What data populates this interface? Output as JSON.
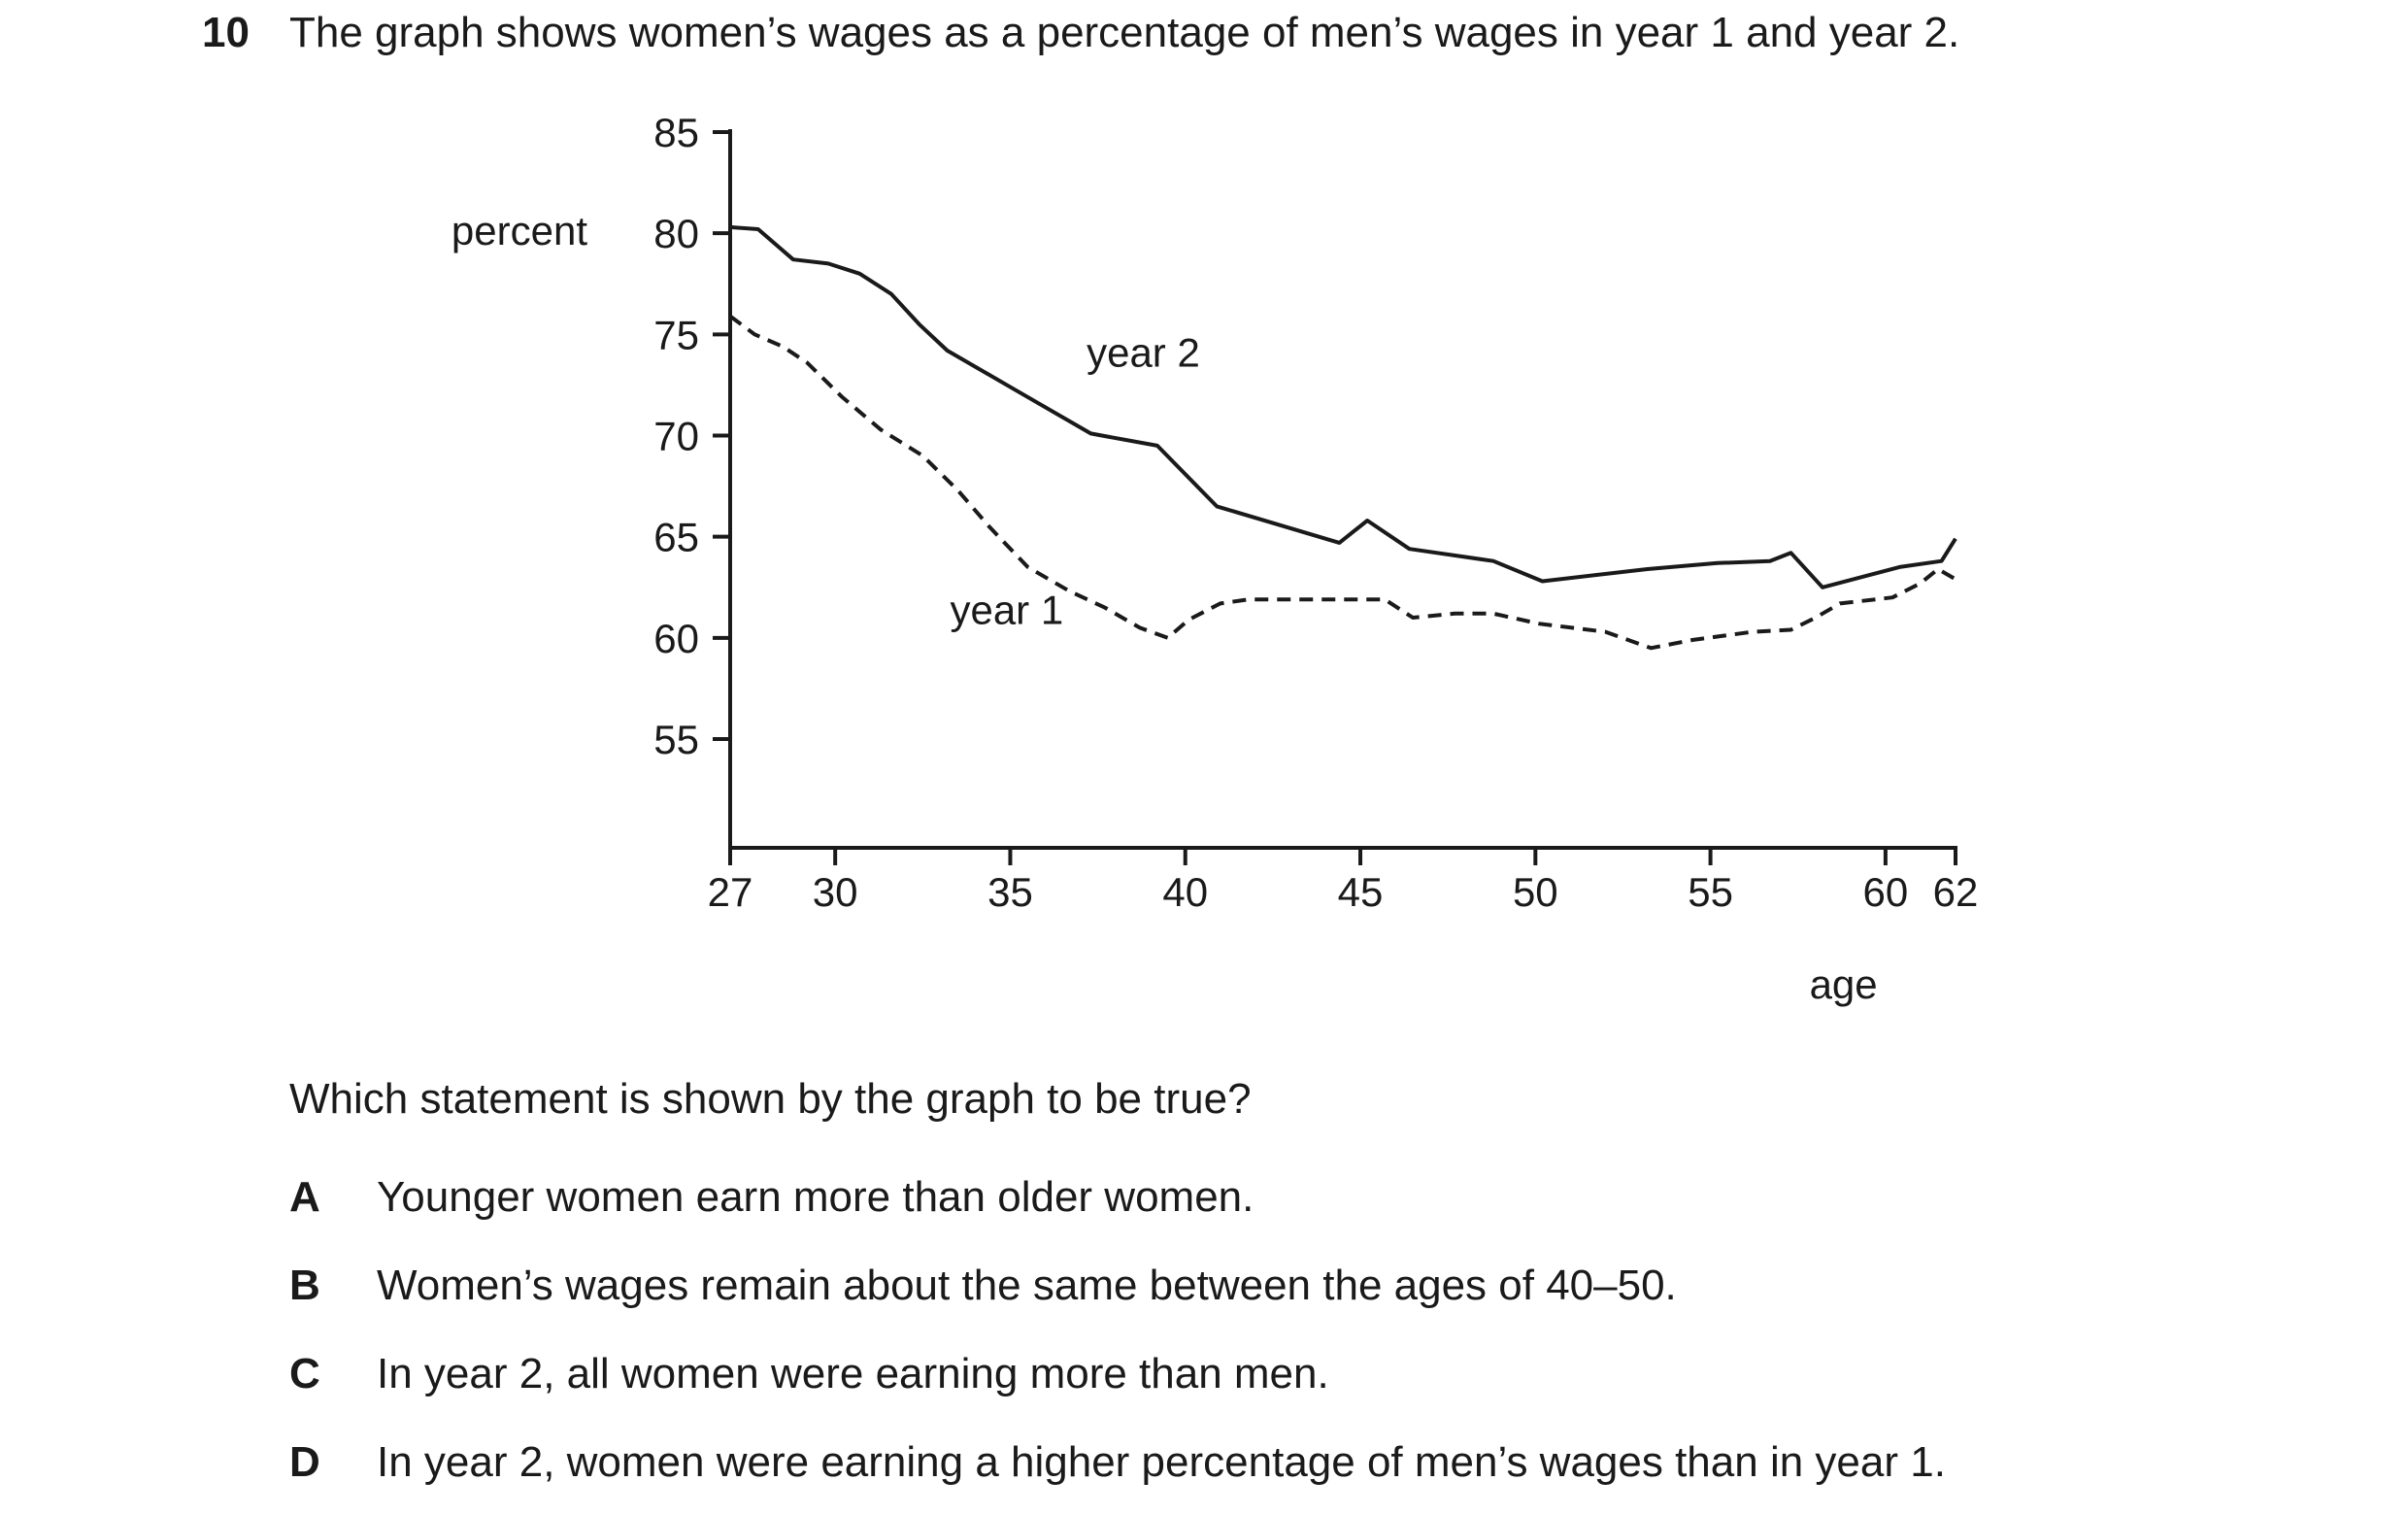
{
  "question": {
    "number": "10",
    "stem": "The graph shows women’s wages as a percentage of men’s wages in year 1 and year 2.",
    "prompt": "Which statement is shown by the graph to be true?",
    "options": [
      {
        "letter": "A",
        "text": "Younger women earn more than older women."
      },
      {
        "letter": "B",
        "text": "Women’s wages remain about the same between the ages of 40–50."
      },
      {
        "letter": "C",
        "text": "In year 2, all women were earning more than men."
      },
      {
        "letter": "D",
        "text": "In year 2, women were earning a higher percentage of men’s wages than in year 1."
      }
    ]
  },
  "chart_data": {
    "type": "line",
    "title": "",
    "xlabel": "age",
    "ylabel": "percent",
    "xlim": [
      27,
      62
    ],
    "ylim": [
      50,
      85
    ],
    "x_ticks": [
      27,
      30,
      35,
      40,
      45,
      50,
      55,
      60,
      62
    ],
    "y_ticks": [
      55,
      60,
      65,
      70,
      75,
      80,
      85
    ],
    "grid": false,
    "legend": "inline labels",
    "series": [
      {
        "name": "year 2",
        "line_style": "solid",
        "color": "#1a1a1a",
        "points": [
          [
            27,
            80.3
          ],
          [
            27.8,
            80.2
          ],
          [
            28.8,
            78.7
          ],
          [
            29.8,
            78.5
          ],
          [
            30.7,
            78.0
          ],
          [
            31.6,
            77.0
          ],
          [
            32.4,
            75.5
          ],
          [
            33.2,
            74.2
          ],
          [
            35.2,
            72.2
          ],
          [
            37.3,
            70.1
          ],
          [
            39.2,
            69.5
          ],
          [
            40.9,
            66.5
          ],
          [
            44.4,
            64.7
          ],
          [
            45.2,
            65.8
          ],
          [
            46.4,
            64.4
          ],
          [
            48.8,
            63.8
          ],
          [
            50.2,
            62.8
          ],
          [
            53.2,
            63.4
          ],
          [
            55.2,
            63.7
          ],
          [
            56.7,
            63.8
          ],
          [
            57.3,
            64.2
          ],
          [
            58.2,
            62.5
          ],
          [
            60.4,
            63.5
          ],
          [
            61.6,
            63.8
          ],
          [
            62,
            64.9
          ]
        ]
      },
      {
        "name": "year 1",
        "line_style": "dashed",
        "color": "#1a1a1a",
        "points": [
          [
            27,
            75.9
          ],
          [
            27.7,
            75.0
          ],
          [
            28.5,
            74.4
          ],
          [
            29.2,
            73.6
          ],
          [
            30.2,
            71.9
          ],
          [
            31.3,
            70.3
          ],
          [
            32.5,
            69.0
          ],
          [
            33.5,
            67.3
          ],
          [
            34.4,
            65.5
          ],
          [
            35.5,
            63.5
          ],
          [
            36.7,
            62.3
          ],
          [
            37.7,
            61.5
          ],
          [
            38.7,
            60.5
          ],
          [
            39.5,
            60.0
          ],
          [
            40.1,
            60.9
          ],
          [
            41.0,
            61.7
          ],
          [
            41.8,
            61.9
          ],
          [
            45.7,
            61.9
          ],
          [
            46.5,
            61.0
          ],
          [
            47.7,
            61.2
          ],
          [
            48.8,
            61.2
          ],
          [
            50.1,
            60.7
          ],
          [
            52.0,
            60.3
          ],
          [
            53.3,
            59.5
          ],
          [
            54.5,
            59.9
          ],
          [
            56.2,
            60.3
          ],
          [
            57.3,
            60.4
          ],
          [
            58.0,
            61.0
          ],
          [
            58.7,
            61.7
          ],
          [
            60.2,
            62.0
          ],
          [
            61.0,
            62.7
          ],
          [
            61.5,
            63.4
          ],
          [
            62,
            62.9
          ]
        ]
      }
    ],
    "annotations": [
      {
        "text": "year 2",
        "series": "year 2"
      },
      {
        "text": "year 1",
        "series": "year 1"
      }
    ]
  }
}
